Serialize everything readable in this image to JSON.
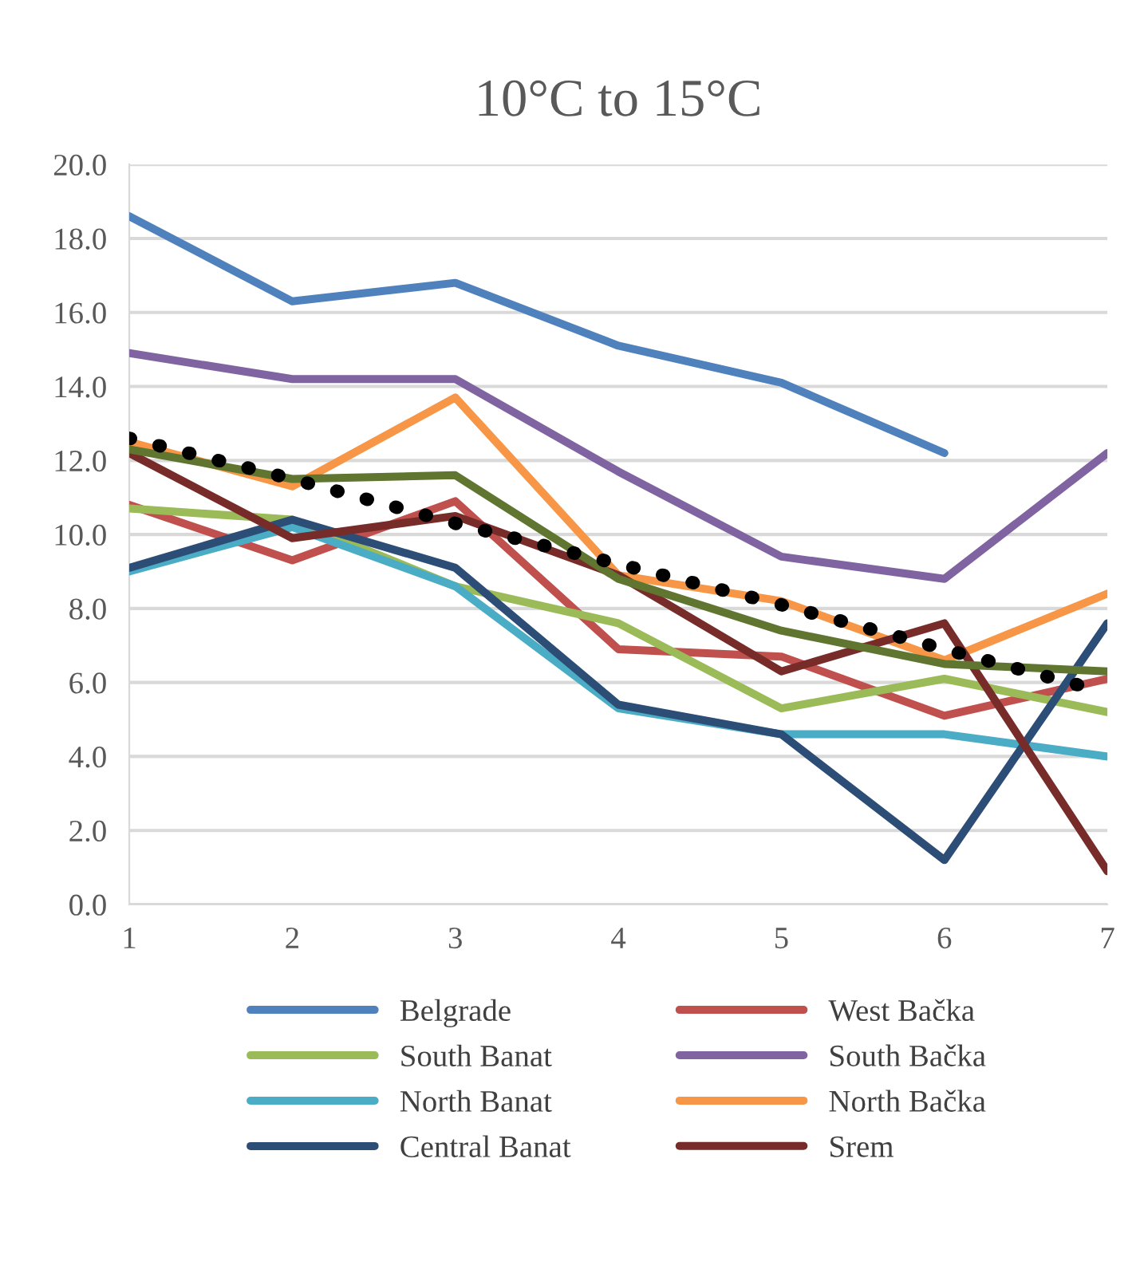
{
  "chart_data": {
    "type": "line",
    "title": "10°C to 15°C",
    "x": [
      1,
      2,
      3,
      4,
      5,
      6,
      7
    ],
    "xlim": [
      1,
      7
    ],
    "xticks": [
      1,
      2,
      3,
      4,
      5,
      6,
      7
    ],
    "ylim": [
      0,
      20
    ],
    "yticks": [
      {
        "value": 0,
        "label": "0.0"
      },
      {
        "value": 2,
        "label": "2.0"
      },
      {
        "value": 4,
        "label": "4.0"
      },
      {
        "value": 6,
        "label": "6.0"
      },
      {
        "value": 8,
        "label": "8.0"
      },
      {
        "value": 10,
        "label": "10.0"
      },
      {
        "value": 12,
        "label": "12.0"
      },
      {
        "value": 14,
        "label": "14.0"
      },
      {
        "value": 16,
        "label": "16.0"
      },
      {
        "value": 18,
        "label": "18.0"
      },
      {
        "value": 20,
        "label": "20.0"
      }
    ],
    "grid": "y",
    "legend": "bottom",
    "marker": "none",
    "line_style": "solid",
    "series": [
      {
        "name": "Belgrade",
        "color": "#4f81bd",
        "values": [
          18.6,
          16.3,
          16.8,
          15.1,
          14.1,
          12.2,
          null
        ]
      },
      {
        "name": "West Bačka",
        "color": "#c0504d",
        "values": [
          10.8,
          9.3,
          10.9,
          6.9,
          6.7,
          5.1,
          6.1
        ]
      },
      {
        "name": "South Banat",
        "color": "#9bbb59",
        "values": [
          10.7,
          10.4,
          8.6,
          7.6,
          5.3,
          6.1,
          5.2
        ]
      },
      {
        "name": "South Bačka",
        "color": "#8064a2",
        "values": [
          14.9,
          14.2,
          14.2,
          11.7,
          9.4,
          8.8,
          12.2
        ]
      },
      {
        "name": "North Banat",
        "color": "#4bacc6",
        "values": [
          9.0,
          10.2,
          8.6,
          5.3,
          4.6,
          4.6,
          4.0
        ]
      },
      {
        "name": "North Bačka",
        "color": "#f79646",
        "values": [
          12.5,
          11.3,
          13.7,
          8.9,
          8.2,
          6.6,
          8.4
        ]
      },
      {
        "name": "Central Banat",
        "color": "#2c4d75",
        "values": [
          9.1,
          10.4,
          9.1,
          5.4,
          4.6,
          1.2,
          7.6
        ]
      },
      {
        "name": "Srem",
        "color": "#772c2a",
        "values": [
          12.2,
          9.9,
          10.5,
          8.9,
          6.3,
          7.6,
          0.9
        ]
      },
      {
        "color": "#5f7530",
        "values": [
          12.3,
          11.5,
          11.6,
          8.8,
          7.4,
          6.5,
          6.3
        ]
      },
      {
        "color": "#000000",
        "line_style": "dotted",
        "x": [
          1,
          2,
          3,
          4,
          5,
          6,
          6.85
        ],
        "values": [
          12.6,
          11.5,
          10.3,
          9.2,
          8.1,
          6.9,
          5.9
        ]
      }
    ]
  }
}
